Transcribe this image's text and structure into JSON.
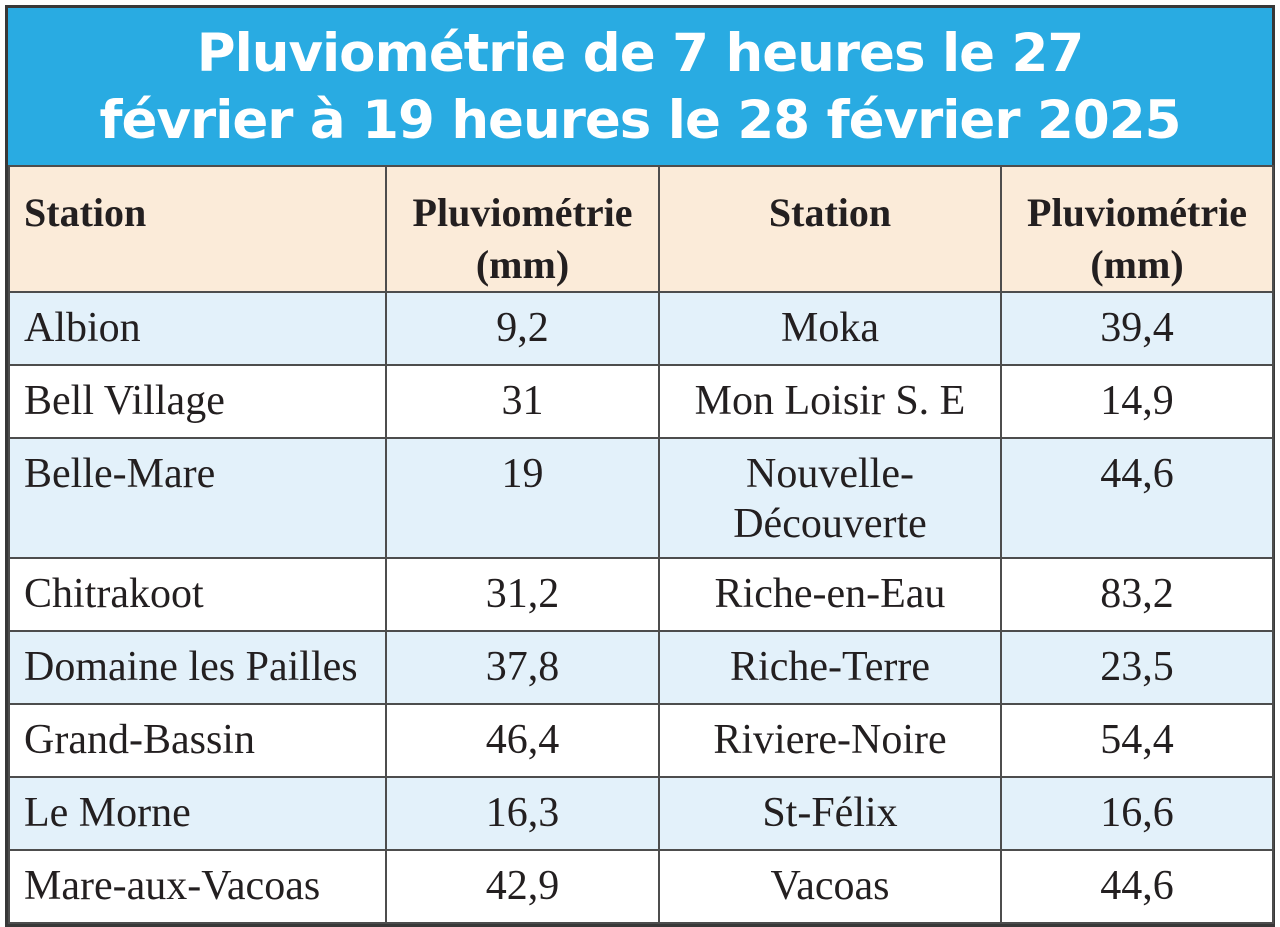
{
  "title": {
    "line1": "Pluviométrie de 7 heures le 27",
    "line2": "février à 19 heures le 28 février 2025",
    "full": "Pluviométrie de 7 heures le 27 février à 19 heures le 28 février 2025"
  },
  "table": {
    "headers": [
      {
        "title": "Station",
        "unit": ""
      },
      {
        "title": "Pluviométrie",
        "unit": "(mm)"
      },
      {
        "title": "Station",
        "unit": ""
      },
      {
        "title": "Pluviométrie",
        "unit": "(mm)"
      }
    ],
    "rows": [
      {
        "station_left": "Albion",
        "value_left": "9,2",
        "station_right": "Moka",
        "value_right": "39,4"
      },
      {
        "station_left": "Bell Village",
        "value_left": "31",
        "station_right": "Mon Loisir S. E",
        "value_right": "14,9"
      },
      {
        "station_left": "Belle-Mare",
        "value_left": "19",
        "station_right": "Nouvelle-Découverte",
        "value_right": "44,6"
      },
      {
        "station_left": "Chitrakoot",
        "value_left": "31,2",
        "station_right": "Riche-en-Eau",
        "value_right": "83,2"
      },
      {
        "station_left": "Domaine les Pailles",
        "value_left": "37,8",
        "station_right": "Riche-Terre",
        "value_right": "23,5"
      },
      {
        "station_left": "Grand-Bassin",
        "value_left": "46,4",
        "station_right": "Riviere-Noire",
        "value_right": "54,4"
      },
      {
        "station_left": "Le Morne",
        "value_left": "16,3",
        "station_right": "St-Félix",
        "value_right": "16,6"
      },
      {
        "station_left": "Mare-aux-Vacoas",
        "value_left": "42,9",
        "station_right": "Vacoas",
        "value_right": "44,6"
      }
    ]
  },
  "chart_data": {
    "type": "table",
    "title": "Pluviométrie de 7 heures le 27 février à 19 heures le 28 février 2025",
    "columns": [
      "Station",
      "Pluviométrie (mm)",
      "Station",
      "Pluviométrie (mm)"
    ],
    "unit": "mm",
    "stations": [
      {
        "station": "Albion",
        "pluviometrie_mm": 9.2
      },
      {
        "station": "Bell Village",
        "pluviometrie_mm": 31
      },
      {
        "station": "Belle-Mare",
        "pluviometrie_mm": 19
      },
      {
        "station": "Chitrakoot",
        "pluviometrie_mm": 31.2
      },
      {
        "station": "Domaine les Pailles",
        "pluviometrie_mm": 37.8
      },
      {
        "station": "Grand-Bassin",
        "pluviometrie_mm": 46.4
      },
      {
        "station": "Le Morne",
        "pluviometrie_mm": 16.3
      },
      {
        "station": "Mare-aux-Vacoas",
        "pluviometrie_mm": 42.9
      },
      {
        "station": "Moka",
        "pluviometrie_mm": 39.4
      },
      {
        "station": "Mon Loisir S. E",
        "pluviometrie_mm": 14.9
      },
      {
        "station": "Nouvelle-Découverte",
        "pluviometrie_mm": 44.6
      },
      {
        "station": "Riche-en-Eau",
        "pluviometrie_mm": 83.2
      },
      {
        "station": "Riche-Terre",
        "pluviometrie_mm": 23.5
      },
      {
        "station": "Riviere-Noire",
        "pluviometrie_mm": 54.4
      },
      {
        "station": "St-Félix",
        "pluviometrie_mm": 16.6
      },
      {
        "station": "Vacoas",
        "pluviometrie_mm": 44.6
      }
    ]
  },
  "colors": {
    "title_bg": "#29ABE2",
    "title_text": "#ffffff",
    "header_bg": "#FBEBD9",
    "stripe_bg": "#E3F1FA",
    "grid_color": "#4d4d4d",
    "text_color": "#231f20"
  }
}
